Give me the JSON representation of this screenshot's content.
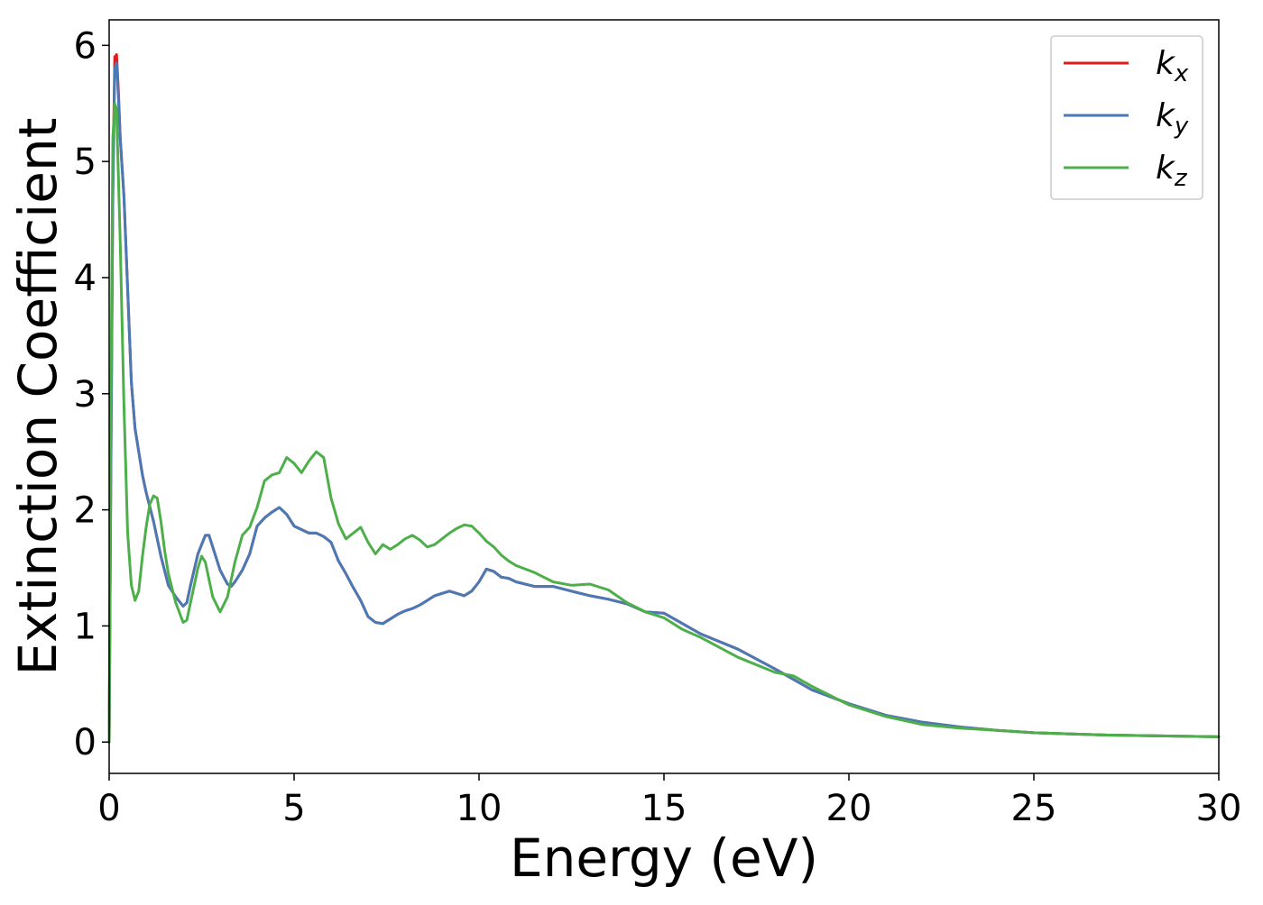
{
  "chart_data": {
    "type": "line",
    "title": "",
    "xlabel": "Energy (eV)",
    "ylabel": "Extinction Coefficient",
    "xlim": [
      0,
      30
    ],
    "ylim": [
      -0.27,
      6.22
    ],
    "xticks": [
      0,
      5,
      10,
      15,
      20,
      25,
      30
    ],
    "yticks": [
      0,
      1,
      2,
      3,
      4,
      5,
      6
    ],
    "grid": false,
    "legend_position": "top-right",
    "series": [
      {
        "name": "k_x",
        "label_main": "k",
        "label_sub": "x",
        "color": "#e41a1c",
        "x": [
          0.0,
          0.05,
          0.1,
          0.15,
          0.2,
          0.25,
          0.3,
          0.4,
          0.5,
          0.6,
          0.7,
          0.8,
          0.9,
          1.0,
          1.2,
          1.4,
          1.6,
          1.8,
          2.0,
          2.1,
          2.2,
          2.4,
          2.6,
          2.7,
          2.8,
          3.0,
          3.2,
          3.3,
          3.4,
          3.6,
          3.8,
          4.0,
          4.2,
          4.4,
          4.6,
          4.8,
          5.0,
          5.2,
          5.4,
          5.6,
          5.8,
          6.0,
          6.2,
          6.4,
          6.6,
          6.8,
          7.0,
          7.2,
          7.4,
          7.6,
          7.8,
          8.0,
          8.2,
          8.4,
          8.6,
          8.8,
          9.0,
          9.2,
          9.4,
          9.6,
          9.8,
          10.0,
          10.2,
          10.4,
          10.6,
          10.8,
          11.0,
          11.5,
          12.0,
          12.5,
          13.0,
          13.5,
          14.0,
          14.5,
          15.0,
          15.5,
          16.0,
          17.0,
          18.0,
          19.0,
          20.0,
          21.0,
          22.0,
          23.0,
          24.0,
          25.0,
          26.0,
          27.0,
          28.0,
          29.0,
          30.0
        ],
        "y": [
          0.0,
          2.5,
          4.8,
          5.9,
          5.92,
          5.6,
          5.2,
          4.7,
          3.9,
          3.1,
          2.7,
          2.5,
          2.3,
          2.15,
          1.9,
          1.6,
          1.35,
          1.25,
          1.17,
          1.2,
          1.35,
          1.62,
          1.78,
          1.78,
          1.68,
          1.48,
          1.36,
          1.34,
          1.38,
          1.48,
          1.62,
          1.86,
          1.93,
          1.98,
          2.02,
          1.96,
          1.86,
          1.83,
          1.8,
          1.8,
          1.77,
          1.72,
          1.56,
          1.45,
          1.33,
          1.22,
          1.08,
          1.03,
          1.02,
          1.06,
          1.1,
          1.13,
          1.15,
          1.18,
          1.22,
          1.26,
          1.28,
          1.3,
          1.28,
          1.26,
          1.3,
          1.38,
          1.49,
          1.47,
          1.42,
          1.41,
          1.38,
          1.34,
          1.34,
          1.3,
          1.26,
          1.23,
          1.19,
          1.12,
          1.11,
          1.02,
          0.93,
          0.8,
          0.63,
          0.45,
          0.33,
          0.23,
          0.17,
          0.13,
          0.1,
          0.08,
          0.07,
          0.06,
          0.055,
          0.05,
          0.045
        ]
      },
      {
        "name": "k_y",
        "label_main": "k",
        "label_sub": "y",
        "color": "#4a7ab5",
        "x": [
          0.0,
          0.05,
          0.1,
          0.15,
          0.2,
          0.25,
          0.3,
          0.4,
          0.5,
          0.6,
          0.7,
          0.8,
          0.9,
          1.0,
          1.2,
          1.4,
          1.6,
          1.8,
          2.0,
          2.1,
          2.2,
          2.4,
          2.6,
          2.7,
          2.8,
          3.0,
          3.2,
          3.3,
          3.4,
          3.6,
          3.8,
          4.0,
          4.2,
          4.4,
          4.6,
          4.8,
          5.0,
          5.2,
          5.4,
          5.6,
          5.8,
          6.0,
          6.2,
          6.4,
          6.6,
          6.8,
          7.0,
          7.2,
          7.4,
          7.6,
          7.8,
          8.0,
          8.2,
          8.4,
          8.6,
          8.8,
          9.0,
          9.2,
          9.4,
          9.6,
          9.8,
          10.0,
          10.2,
          10.4,
          10.6,
          10.8,
          11.0,
          11.5,
          12.0,
          12.5,
          13.0,
          13.5,
          14.0,
          14.5,
          15.0,
          15.5,
          16.0,
          17.0,
          18.0,
          19.0,
          20.0,
          21.0,
          22.0,
          23.0,
          24.0,
          25.0,
          26.0,
          27.0,
          28.0,
          29.0,
          30.0
        ],
        "y": [
          0.0,
          2.4,
          4.7,
          5.8,
          5.85,
          5.55,
          5.2,
          4.7,
          3.9,
          3.1,
          2.7,
          2.5,
          2.3,
          2.15,
          1.9,
          1.6,
          1.35,
          1.25,
          1.17,
          1.2,
          1.35,
          1.62,
          1.78,
          1.78,
          1.68,
          1.48,
          1.36,
          1.34,
          1.38,
          1.48,
          1.62,
          1.86,
          1.93,
          1.98,
          2.02,
          1.96,
          1.86,
          1.83,
          1.8,
          1.8,
          1.77,
          1.72,
          1.56,
          1.45,
          1.33,
          1.22,
          1.08,
          1.03,
          1.02,
          1.06,
          1.1,
          1.13,
          1.15,
          1.18,
          1.22,
          1.26,
          1.28,
          1.3,
          1.28,
          1.26,
          1.3,
          1.38,
          1.49,
          1.47,
          1.42,
          1.41,
          1.38,
          1.34,
          1.34,
          1.3,
          1.26,
          1.23,
          1.19,
          1.12,
          1.11,
          1.02,
          0.93,
          0.8,
          0.63,
          0.45,
          0.33,
          0.23,
          0.17,
          0.13,
          0.1,
          0.08,
          0.07,
          0.06,
          0.055,
          0.05,
          0.045
        ]
      },
      {
        "name": "k_z",
        "label_main": "k",
        "label_sub": "z",
        "color": "#4daf4a",
        "x": [
          0.0,
          0.05,
          0.1,
          0.15,
          0.2,
          0.3,
          0.4,
          0.5,
          0.6,
          0.7,
          0.8,
          0.9,
          1.0,
          1.1,
          1.2,
          1.3,
          1.4,
          1.5,
          1.6,
          1.8,
          2.0,
          2.1,
          2.2,
          2.4,
          2.5,
          2.6,
          2.8,
          3.0,
          3.2,
          3.4,
          3.6,
          3.8,
          4.0,
          4.2,
          4.4,
          4.6,
          4.8,
          5.0,
          5.2,
          5.4,
          5.6,
          5.8,
          6.0,
          6.2,
          6.4,
          6.6,
          6.8,
          7.0,
          7.2,
          7.4,
          7.6,
          7.8,
          8.0,
          8.2,
          8.4,
          8.6,
          8.8,
          9.0,
          9.2,
          9.4,
          9.6,
          9.8,
          10.0,
          10.2,
          10.4,
          10.6,
          10.8,
          11.0,
          11.5,
          12.0,
          12.5,
          13.0,
          13.5,
          14.0,
          14.5,
          15.0,
          15.5,
          16.0,
          17.0,
          18.0,
          18.5,
          19.0,
          20.0,
          21.0,
          22.0,
          23.0,
          24.0,
          25.0,
          26.0,
          27.0,
          28.0,
          29.0,
          30.0
        ],
        "y": [
          0.0,
          3.0,
          5.2,
          5.5,
          5.45,
          4.3,
          2.9,
          1.8,
          1.35,
          1.22,
          1.3,
          1.6,
          1.85,
          2.05,
          2.12,
          2.1,
          1.9,
          1.65,
          1.45,
          1.2,
          1.03,
          1.05,
          1.2,
          1.5,
          1.6,
          1.55,
          1.25,
          1.12,
          1.25,
          1.55,
          1.78,
          1.85,
          2.02,
          2.25,
          2.3,
          2.32,
          2.45,
          2.4,
          2.32,
          2.42,
          2.5,
          2.45,
          2.1,
          1.88,
          1.75,
          1.8,
          1.85,
          1.72,
          1.62,
          1.7,
          1.66,
          1.7,
          1.75,
          1.78,
          1.74,
          1.68,
          1.7,
          1.75,
          1.8,
          1.84,
          1.87,
          1.86,
          1.8,
          1.73,
          1.68,
          1.61,
          1.56,
          1.52,
          1.46,
          1.38,
          1.35,
          1.36,
          1.31,
          1.2,
          1.12,
          1.07,
          0.97,
          0.9,
          0.73,
          0.6,
          0.57,
          0.48,
          0.32,
          0.22,
          0.15,
          0.12,
          0.1,
          0.08,
          0.07,
          0.06,
          0.055,
          0.05,
          0.045
        ]
      }
    ]
  }
}
